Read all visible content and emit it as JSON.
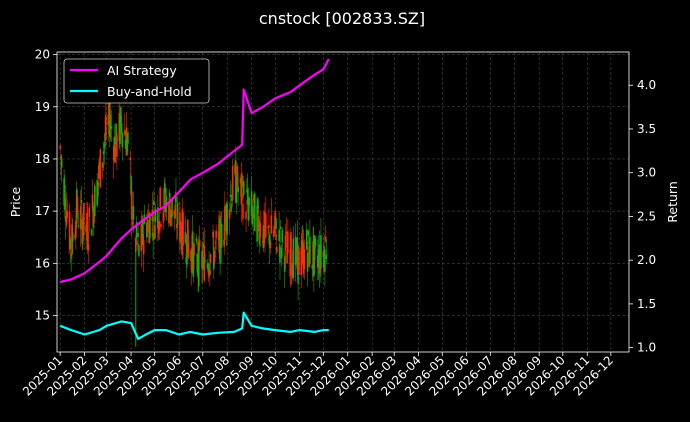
{
  "chart_data": {
    "type": "line",
    "title": "cnstock [002833.SZ]",
    "ylabel": "Price",
    "y2label": "Return",
    "ylim": [
      14.3,
      20.05
    ],
    "y2lim": [
      0.95,
      4.38
    ],
    "xlim": [
      "2024-12-28",
      "2026-12-24"
    ],
    "grid": true,
    "legend_placement": "top-left",
    "y_ticks": [
      15,
      16,
      17,
      18,
      19,
      20
    ],
    "y2_ticks": [
      1.0,
      1.5,
      2.0,
      2.5,
      3.0,
      3.5,
      4.0
    ],
    "x_ticks": [
      "2025-01",
      "2025-02",
      "2025-03",
      "2025-04",
      "2025-05",
      "2025-06",
      "2025-07",
      "2025-08",
      "2025-09",
      "2025-10",
      "2025-11",
      "2025-12",
      "2026-01",
      "2026-02",
      "2026-03",
      "2026-04",
      "2026-05",
      "2026-06",
      "2026-07",
      "2026-08",
      "2026-09",
      "2026-10",
      "2026-11",
      "2026-12"
    ],
    "price_candles": {
      "description_points": [
        [
          "2025-01-01",
          18.2
        ],
        [
          "2025-01-08",
          17.2
        ],
        [
          "2025-01-15",
          16.3
        ],
        [
          "2025-01-22",
          17.0
        ],
        [
          "2025-02-05",
          16.6
        ],
        [
          "2025-02-15",
          17.3
        ],
        [
          "2025-02-25",
          18.2
        ],
        [
          "2025-03-05",
          18.8
        ],
        [
          "2025-03-12",
          18.2
        ],
        [
          "2025-03-20",
          18.7
        ],
        [
          "2025-03-28",
          18.3
        ],
        [
          "2025-04-05",
          16.5
        ],
        [
          "2025-04-12",
          16.2
        ],
        [
          "2025-04-20",
          16.8
        ],
        [
          "2025-05-01",
          16.9
        ],
        [
          "2025-05-15",
          17.2
        ],
        [
          "2025-05-25",
          17.0
        ],
        [
          "2025-06-05",
          16.6
        ],
        [
          "2025-06-15",
          16.3
        ],
        [
          "2025-06-25",
          16.0
        ],
        [
          "2025-07-05",
          16.1
        ],
        [
          "2025-07-15",
          16.2
        ],
        [
          "2025-07-25",
          16.5
        ],
        [
          "2025-08-01",
          17.0
        ],
        [
          "2025-08-10",
          17.6
        ],
        [
          "2025-08-20",
          17.3
        ],
        [
          "2025-09-01",
          17.0
        ],
        [
          "2025-09-10",
          16.8
        ],
        [
          "2025-09-20",
          16.5
        ],
        [
          "2025-10-01",
          16.6
        ],
        [
          "2025-10-10",
          16.3
        ],
        [
          "2025-10-20",
          16.2
        ],
        [
          "2025-11-01",
          16.0
        ],
        [
          "2025-11-10",
          16.3
        ],
        [
          "2025-11-20",
          16.1
        ],
        [
          "2025-12-01",
          16.2
        ],
        [
          "2025-12-08",
          16.5
        ]
      ]
    },
    "series": [
      {
        "name": "AI Strategy",
        "color": "#ff00ff",
        "axis": "right",
        "x": [
          "2025-01-01",
          "2025-01-15",
          "2025-02-01",
          "2025-02-20",
          "2025-03-01",
          "2025-03-20",
          "2025-04-01",
          "2025-04-15",
          "2025-05-01",
          "2025-05-15",
          "2025-06-01",
          "2025-06-15",
          "2025-07-01",
          "2025-07-20",
          "2025-08-10",
          "2025-08-20",
          "2025-08-22",
          "2025-09-01",
          "2025-09-15",
          "2025-10-01",
          "2025-10-20",
          "2025-11-01",
          "2025-11-20",
          "2025-12-01",
          "2025-12-08"
        ],
        "values": [
          1.75,
          1.78,
          1.85,
          1.98,
          2.05,
          2.25,
          2.35,
          2.45,
          2.55,
          2.62,
          2.78,
          2.92,
          3.0,
          3.1,
          3.25,
          3.32,
          3.95,
          3.68,
          3.75,
          3.85,
          3.92,
          4.0,
          4.12,
          4.18,
          4.3
        ]
      },
      {
        "name": "Buy-and-Hold",
        "color": "#00ffff",
        "axis": "right",
        "x": [
          "2025-01-01",
          "2025-01-15",
          "2025-02-01",
          "2025-02-20",
          "2025-03-01",
          "2025-03-20",
          "2025-04-01",
          "2025-04-10",
          "2025-04-20",
          "2025-05-01",
          "2025-05-15",
          "2025-06-01",
          "2025-06-15",
          "2025-07-01",
          "2025-07-20",
          "2025-08-10",
          "2025-08-20",
          "2025-08-22",
          "2025-09-01",
          "2025-09-15",
          "2025-10-01",
          "2025-10-20",
          "2025-11-01",
          "2025-11-20",
          "2025-12-01",
          "2025-12-08"
        ],
        "values": [
          1.25,
          1.2,
          1.15,
          1.2,
          1.25,
          1.3,
          1.28,
          1.1,
          1.15,
          1.2,
          1.2,
          1.15,
          1.18,
          1.15,
          1.17,
          1.18,
          1.22,
          1.4,
          1.25,
          1.22,
          1.2,
          1.18,
          1.2,
          1.18,
          1.2,
          1.2
        ]
      }
    ]
  }
}
